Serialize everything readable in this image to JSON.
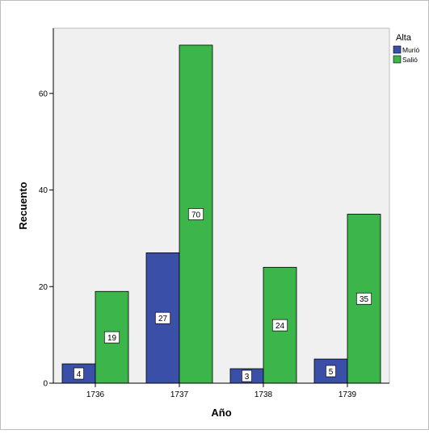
{
  "chart_data": {
    "type": "bar",
    "title": "",
    "xlabel": "Año",
    "ylabel": "Recuento",
    "categories": [
      "1736",
      "1737",
      "1738",
      "1739"
    ],
    "series": [
      {
        "name": "Murió",
        "values": [
          4,
          27,
          3,
          5
        ],
        "color": "#3a4fa8"
      },
      {
        "name": "Salió",
        "values": [
          19,
          70,
          24,
          35
        ],
        "color": "#3cb54a"
      }
    ],
    "ylim": [
      0,
      73.5
    ],
    "yticks": [
      0,
      20,
      40,
      60
    ],
    "legend": {
      "title": "Alta",
      "placement": "top-right"
    },
    "grid": false
  }
}
